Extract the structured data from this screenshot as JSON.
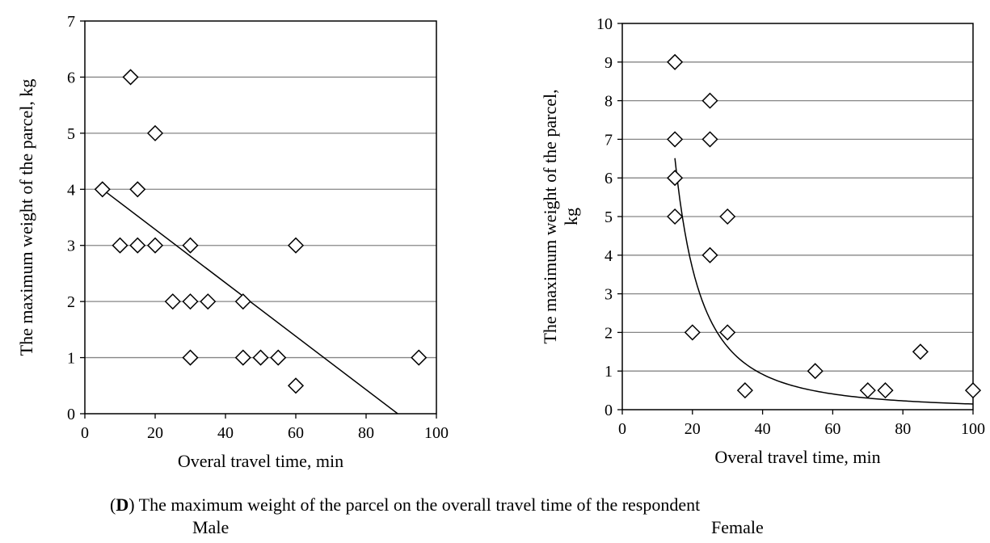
{
  "chart_data": [
    {
      "type": "scatter",
      "title": "",
      "xlabel": "Overal travel time, min",
      "ylabel": "The maximum weight of the parcel, kg",
      "xlim": [
        0,
        100
      ],
      "ylim": [
        0,
        7
      ],
      "xticks": [
        0,
        20,
        40,
        60,
        80,
        100
      ],
      "yticks": [
        0,
        1,
        2,
        3,
        4,
        5,
        6,
        7
      ],
      "grid": "horizontal",
      "marker": "diamond",
      "points": [
        {
          "x": 13,
          "y": 6
        },
        {
          "x": 20,
          "y": 5
        },
        {
          "x": 5,
          "y": 4
        },
        {
          "x": 15,
          "y": 4
        },
        {
          "x": 10,
          "y": 3
        },
        {
          "x": 15,
          "y": 3
        },
        {
          "x": 20,
          "y": 3
        },
        {
          "x": 30,
          "y": 3
        },
        {
          "x": 60,
          "y": 3
        },
        {
          "x": 25,
          "y": 2
        },
        {
          "x": 30,
          "y": 2
        },
        {
          "x": 35,
          "y": 2
        },
        {
          "x": 45,
          "y": 2
        },
        {
          "x": 30,
          "y": 1
        },
        {
          "x": 45,
          "y": 1
        },
        {
          "x": 50,
          "y": 1
        },
        {
          "x": 55,
          "y": 1
        },
        {
          "x": 95,
          "y": 1
        },
        {
          "x": 60,
          "y": 0.5
        }
      ],
      "trendline": {
        "type": "linear",
        "from": [
          5,
          4.0
        ],
        "to": [
          89,
          0
        ]
      }
    },
    {
      "type": "scatter",
      "title": "",
      "xlabel": "Overal travel time, min",
      "ylabel": "The maximum weight of the parcel, kg",
      "xlim": [
        0,
        100
      ],
      "ylim": [
        0,
        10
      ],
      "xticks": [
        0,
        20,
        40,
        60,
        80,
        100
      ],
      "yticks": [
        0,
        1,
        2,
        3,
        4,
        5,
        6,
        7,
        8,
        9,
        10
      ],
      "grid": "horizontal",
      "marker": "diamond",
      "points": [
        {
          "x": 15,
          "y": 9
        },
        {
          "x": 25,
          "y": 8
        },
        {
          "x": 15,
          "y": 7
        },
        {
          "x": 25,
          "y": 7
        },
        {
          "x": 15,
          "y": 6
        },
        {
          "x": 15,
          "y": 5
        },
        {
          "x": 30,
          "y": 5
        },
        {
          "x": 25,
          "y": 4
        },
        {
          "x": 20,
          "y": 2
        },
        {
          "x": 30,
          "y": 2
        },
        {
          "x": 35,
          "y": 0.5
        },
        {
          "x": 55,
          "y": 1
        },
        {
          "x": 70,
          "y": 0.5
        },
        {
          "x": 75,
          "y": 0.5
        },
        {
          "x": 85,
          "y": 1.5
        },
        {
          "x": 100,
          "y": 0.5
        }
      ],
      "trendline": {
        "type": "power",
        "a": 1465,
        "b": -2.0,
        "xrange": [
          15,
          100
        ]
      }
    }
  ],
  "caption": {
    "letter": "D",
    "text": " The maximum weight of the parcel on the overall travel time of the respondent"
  },
  "panel_labels": [
    "Male",
    "Female"
  ],
  "right_ylabel_lines": [
    "The maximum weight of the parcel,",
    "kg"
  ]
}
